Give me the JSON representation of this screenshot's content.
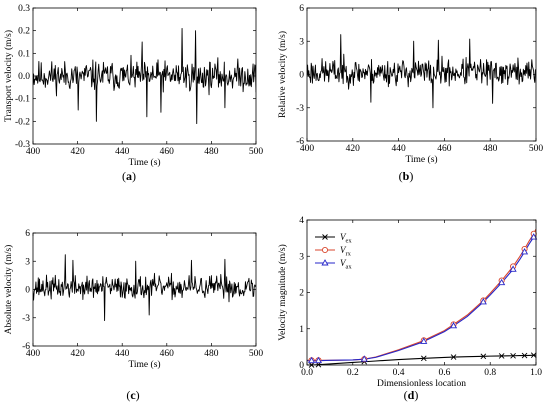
{
  "panel_labels": [
    "a",
    "b",
    "c",
    "d"
  ],
  "chart_data": [
    {
      "id": "a",
      "type": "line",
      "xlabel": "Time (s)",
      "ylabel": "Transport velocity (m/s)",
      "xlim": [
        400,
        500
      ],
      "ylim": [
        -0.3,
        0.3
      ],
      "xticks": [
        "400",
        "420",
        "440",
        "460",
        "480",
        "500"
      ],
      "yticks": [
        "-0.3",
        "-0.2",
        "-0.1",
        "0.0",
        "0.1",
        "0.2",
        "0.3"
      ],
      "signal": {
        "mean": 0.0,
        "amplitude": 0.06,
        "seed": 11
      },
      "peaks": [
        {
          "x": 420.2,
          "y": -0.15
        },
        {
          "x": 428.5,
          "y": -0.2
        },
        {
          "x": 449.0,
          "y": 0.15
        },
        {
          "x": 451.0,
          "y": -0.18
        },
        {
          "x": 457.5,
          "y": -0.16
        },
        {
          "x": 466.8,
          "y": 0.21
        },
        {
          "x": 472.8,
          "y": 0.2
        },
        {
          "x": 473.4,
          "y": -0.21
        },
        {
          "x": 486.0,
          "y": -0.14
        }
      ]
    },
    {
      "id": "b",
      "type": "line",
      "xlabel": "Time (s)",
      "ylabel": "Relative velocity (m/s)",
      "xlim": [
        400,
        500
      ],
      "ylim": [
        -6,
        6
      ],
      "xticks": [
        "400",
        "420",
        "440",
        "460",
        "480",
        "500"
      ],
      "yticks": [
        "-6",
        "-3",
        "0",
        "3",
        "6"
      ],
      "signal": {
        "mean": 0.2,
        "amplitude": 1.1,
        "seed": 23
      },
      "peaks": [
        {
          "x": 414.8,
          "y": 3.6
        },
        {
          "x": 428.0,
          "y": -2.5
        },
        {
          "x": 446.5,
          "y": 3.0
        },
        {
          "x": 457.5,
          "y": 3.1
        },
        {
          "x": 455.0,
          "y": -3.0
        },
        {
          "x": 471.0,
          "y": 3.2
        },
        {
          "x": 481.0,
          "y": -2.6
        }
      ]
    },
    {
      "id": "c",
      "type": "line",
      "xlabel": "Time (s)",
      "ylabel": "Absolute velocity (m/s)",
      "xlim": [
        400,
        500
      ],
      "ylim": [
        -6,
        6
      ],
      "xticks": [
        "400",
        "420",
        "440",
        "460",
        "480",
        "500"
      ],
      "yticks": [
        "-6",
        "-3",
        "0",
        "3",
        "6"
      ],
      "signal": {
        "mean": 0.2,
        "amplitude": 1.1,
        "seed": 37
      },
      "peaks": [
        {
          "x": 414.5,
          "y": 3.7
        },
        {
          "x": 418.0,
          "y": 3.1
        },
        {
          "x": 432.0,
          "y": -3.3
        },
        {
          "x": 446.0,
          "y": 3.0
        },
        {
          "x": 452.0,
          "y": -2.7
        },
        {
          "x": 471.0,
          "y": 3.1
        },
        {
          "x": 486.0,
          "y": 3.2
        }
      ]
    },
    {
      "id": "d",
      "type": "line",
      "xlabel": "Dimensionless location",
      "ylabel": "Velocity magnitude (m/s)",
      "xlim": [
        0.0,
        1.0
      ],
      "ylim": [
        0,
        4
      ],
      "xticks": [
        "0.0",
        "0.2",
        "0.4",
        "0.6",
        "0.8",
        "1.0"
      ],
      "yticks": [
        "0",
        "1",
        "2",
        "3",
        "4"
      ],
      "legend_position": "top-left",
      "series": [
        {
          "name": "V",
          "subscript": "ex",
          "color": "#000000",
          "marker": "x",
          "x": [
            0.0,
            0.02,
            0.05,
            0.1,
            0.2,
            0.25,
            0.3,
            0.4,
            0.5,
            0.6,
            0.64,
            0.7,
            0.77,
            0.8,
            0.85,
            0.9,
            0.93,
            0.95,
            0.97,
            0.99,
            1.0
          ],
          "values": [
            0.0,
            0.0,
            0.01,
            0.03,
            0.07,
            0.09,
            0.11,
            0.15,
            0.18,
            0.21,
            0.22,
            0.23,
            0.24,
            0.245,
            0.25,
            0.255,
            0.26,
            0.26,
            0.265,
            0.27,
            0.27
          ],
          "markers_at": [
            0.02,
            0.05,
            0.25,
            0.51,
            0.64,
            0.77,
            0.85,
            0.9,
            0.95,
            0.99
          ]
        },
        {
          "name": "V",
          "subscript": "rx",
          "color": "#d9452c",
          "marker": "o",
          "x": [
            0.0,
            0.02,
            0.05,
            0.1,
            0.2,
            0.25,
            0.3,
            0.4,
            0.5,
            0.6,
            0.64,
            0.7,
            0.77,
            0.8,
            0.85,
            0.9,
            0.93,
            0.95,
            0.97,
            0.99,
            1.0
          ],
          "values": [
            0.13,
            0.13,
            0.13,
            0.13,
            0.14,
            0.16,
            0.22,
            0.42,
            0.65,
            0.95,
            1.12,
            1.38,
            1.78,
            1.98,
            2.33,
            2.72,
            3.0,
            3.2,
            3.42,
            3.62,
            3.75
          ],
          "markers_at": [
            0.02,
            0.05,
            0.25,
            0.51,
            0.64,
            0.77,
            0.85,
            0.9,
            0.95,
            0.99
          ]
        },
        {
          "name": "V",
          "subscript": "ax",
          "color": "#2626c9",
          "marker": "triangle",
          "x": [
            0.0,
            0.02,
            0.05,
            0.1,
            0.2,
            0.25,
            0.3,
            0.4,
            0.5,
            0.6,
            0.64,
            0.7,
            0.77,
            0.8,
            0.85,
            0.9,
            0.93,
            0.95,
            0.97,
            0.99,
            1.0
          ],
          "values": [
            0.12,
            0.12,
            0.12,
            0.13,
            0.14,
            0.16,
            0.21,
            0.4,
            0.62,
            0.92,
            1.08,
            1.34,
            1.74,
            1.93,
            2.27,
            2.64,
            2.92,
            3.12,
            3.34,
            3.53,
            3.65
          ],
          "markers_at": [
            0.02,
            0.05,
            0.25,
            0.51,
            0.64,
            0.77,
            0.85,
            0.9,
            0.95,
            0.99
          ]
        }
      ]
    }
  ]
}
